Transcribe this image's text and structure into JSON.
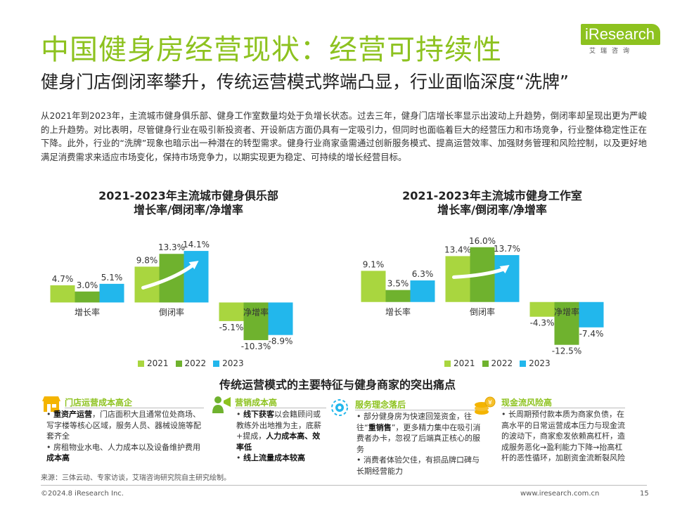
{
  "page": {
    "title": "中国健身房经营现状：经营可持续性",
    "subtitle": "健身门店倒闭率攀升，传统运营模式弊端凸显，行业面临深度“洗牌”",
    "intro": "从2021年到2023年，主流城市健身俱乐部、健身工作室数量均处于负增长状态。过去三年，健身门店增长率显示出波动上升趋势，倒闭率却呈现出更为严峻的上升趋势。对比表明，尽管健身行业在吸引新投资者、开设新店方面仍具有一定吸引力，但同时也面临着巨大的经营压力和市场竞争，行业整体稳定性正在下降。此外，行业的“洗牌”现象也暗示出一种潜在的转型需求。健身行业商家亟需通过创新服务模式、提高运营效率、加强财务管理和风险控制，以及更好地满足消费需求来适应市场变化，保持市场竞争力，以期实现更为稳定、可持续的增长经营目标。",
    "section_title": "传统运营模式的主要特征与健身商家的突出痛点",
    "source": "来源：三体云动、专家访谈，艾瑞咨询研究院自主研究绘制。",
    "footer_left": "©2024.8 iResearch Inc.",
    "footer_right": "www.iresearch.com.cn",
    "page_number": "15"
  },
  "logo": {
    "text": "iResearch",
    "sub": "艾瑞咨询",
    "color": "#8dc21f"
  },
  "colors": {
    "title_green": "#8dc21f",
    "series_2021": "#a9d63f",
    "series_2022": "#6fb22e",
    "series_2023": "#22b7ec"
  },
  "chart_data": [
    {
      "type": "bar",
      "title_lines": [
        "2021-2023年主流城市健身俱乐部",
        "增长率/倒闭率/净增率"
      ],
      "categories": [
        "增长率",
        "倒闭率",
        "净增率"
      ],
      "series": [
        {
          "name": "2021",
          "values": [
            4.7,
            9.8,
            -5.1
          ],
          "labels": [
            "4.7%",
            "9.8%",
            "-5.1%"
          ]
        },
        {
          "name": "2022",
          "values": [
            3.0,
            13.3,
            -10.3
          ],
          "labels": [
            "3.0%",
            "13.3%",
            "-10.3%"
          ]
        },
        {
          "name": "2023",
          "values": [
            5.1,
            14.1,
            -8.9
          ],
          "labels": [
            "5.1%",
            "14.1%",
            "-8.9%"
          ]
        }
      ],
      "ylim": [
        -13,
        17
      ],
      "grid": false,
      "legend": "bottom-center"
    },
    {
      "type": "bar",
      "title_lines": [
        "2021-2023年主流城市健身工作室",
        "增长率/倒闭率/净增率"
      ],
      "categories": [
        "增长率",
        "倒闭率",
        "净增率"
      ],
      "series": [
        {
          "name": "2021",
          "values": [
            9.1,
            13.4,
            -4.3
          ],
          "labels": [
            "9.1%",
            "13.4%",
            "-4.3%"
          ]
        },
        {
          "name": "2022",
          "values": [
            3.5,
            16.0,
            -12.5
          ],
          "labels": [
            "3.5%",
            "16.0%",
            "-12.5%"
          ]
        },
        {
          "name": "2023",
          "values": [
            6.3,
            13.7,
            -7.4
          ],
          "labels": [
            "6.3%",
            "13.7%",
            "-7.4%"
          ]
        }
      ],
      "ylim": [
        -14,
        18
      ],
      "grid": false,
      "legend": "bottom-center"
    }
  ],
  "pain_points": [
    {
      "icon": "storefront-icon",
      "title": "门店运营成本高企",
      "bullets": [
        [
          {
            "t": "重资产运营",
            "b": true
          },
          {
            "t": "，门店面积大且通常位处商场、写字楼等核心区域，服务人员、器械设施等配套齐全",
            "b": false
          }
        ],
        [
          {
            "t": "房租物业水电、人力成本以及设备维护费用",
            "b": false
          },
          {
            "t": "成本高",
            "b": true
          }
        ]
      ]
    },
    {
      "icon": "marketing-person-icon",
      "title": "营销成本高",
      "bullets": [
        [
          {
            "t": "线下获客",
            "b": true
          },
          {
            "t": "以会籍顾问或教练外出地推为主，底薪+提成，",
            "b": false
          },
          {
            "t": "人力成本高、效率低",
            "b": true
          }
        ],
        [
          {
            "t": "线上流量成本较高",
            "b": true
          }
        ]
      ]
    },
    {
      "icon": "service-gear-icon",
      "title": "服务理念落后",
      "bullets": [
        [
          {
            "t": "部分健身房为快速回笼资金，往往“",
            "b": false
          },
          {
            "t": "重销售",
            "b": true
          },
          {
            "t": "”，更多精力集中在吸引消费者办卡，忽视了后端真正核心的服务",
            "b": false
          }
        ],
        [
          {
            "t": "消费者体验欠佳，有损品牌口碑与长期经营能力",
            "b": false
          }
        ]
      ]
    },
    {
      "icon": "coin-stack-icon",
      "title": "现金流风险高",
      "bullets": [
        [
          {
            "t": "长周期预付款本质为商家负债，在高水平的日常运营成本压力与现金流的波动下，商家愈发依赖高杠杆，造成服务恶化→盈利能力下降→抬高杠杆的恶性循环，加剧资金流断裂风险",
            "b": false
          }
        ]
      ]
    }
  ]
}
